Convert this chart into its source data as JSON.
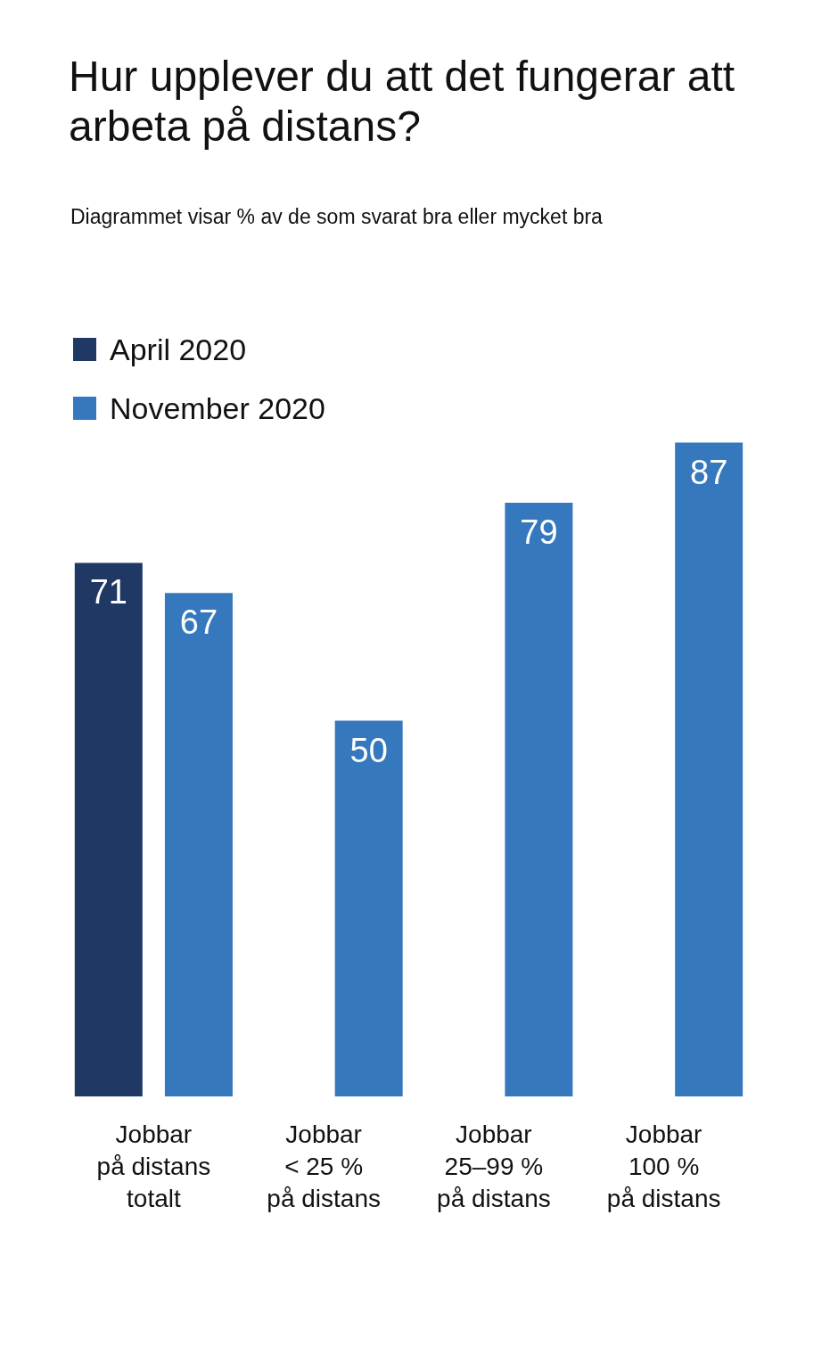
{
  "chart_data": {
    "type": "bar",
    "title": "Hur upplever du att det fungerar att arbeta på distans?",
    "subtitle": "Diagrammet visar % av de som svarat bra eller mycket bra",
    "categories": [
      "Jobbar\npå distans\ntotalt",
      "Jobbar\n< 25 %\npå distans",
      "Jobbar\n25–99 %\npå distans",
      "Jobbar\n100 %\npå distans"
    ],
    "series": [
      {
        "name": "April 2020",
        "color": "#1f3864",
        "values": [
          71,
          null,
          null,
          null
        ]
      },
      {
        "name": "November 2020",
        "color": "#3578be",
        "values": [
          67,
          50,
          79,
          87
        ]
      }
    ],
    "data_labels": true,
    "legend": "top left"
  }
}
